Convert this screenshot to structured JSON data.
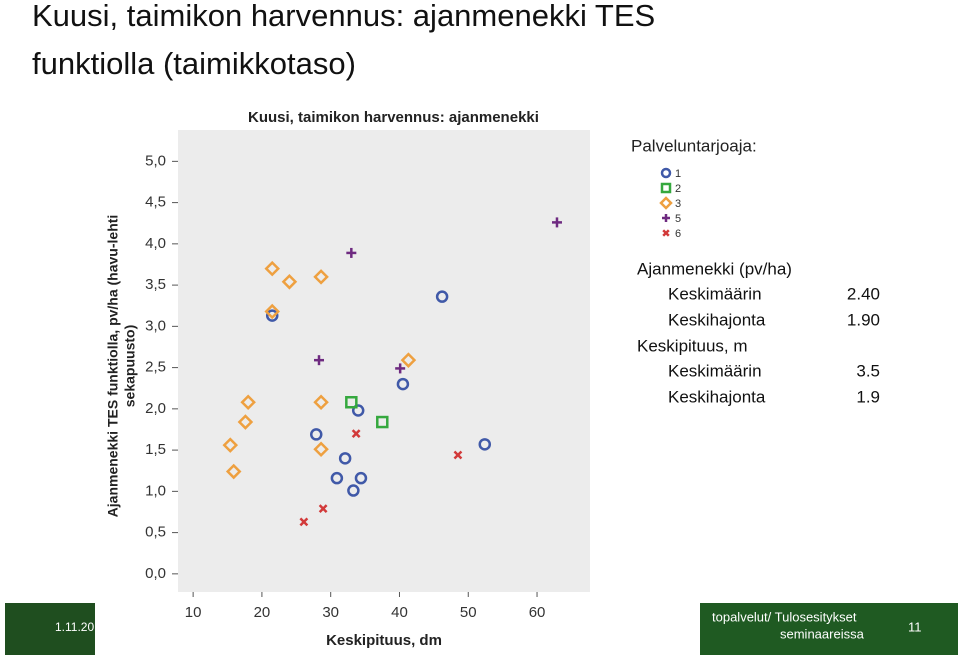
{
  "slide": {
    "title_lines": [
      "Kuusi, taimikon harvennus: ajanmenekki TES",
      "funktiolla (taimikkotaso)"
    ],
    "footer_date": "1.11.20",
    "footer_text_lines": [
      "topalvelut/ Tulosesitykset",
      "seminaareissa"
    ],
    "page_number": "11"
  },
  "stats": {
    "rows": [
      [
        "Ajanmenekki (pv/ha)",
        ""
      ],
      [
        "Keskimäärin",
        "2.40"
      ],
      [
        "Keskihajonta",
        "1.90"
      ],
      [
        "Keskipituus, m",
        ""
      ],
      [
        "Keskimäärin",
        "3.5"
      ],
      [
        "Keskihajonta",
        "1.9"
      ]
    ]
  },
  "chart_data": {
    "type": "scatter",
    "title": "Kuusi, taimikon harvennus: ajanmenekki",
    "xlabel": "Keskipituus, dm",
    "ylabel": [
      "Ajanmenekki TES funktiolla, pv/ha (havu-lehti",
      "sekapuusto)"
    ],
    "legend_title": "Palveluntarjoaja:",
    "legend": "upper right",
    "grid": false,
    "xlim": [
      7.8,
      67.7
    ],
    "xticks": [
      10,
      20,
      30,
      40,
      50,
      60
    ],
    "ylim": [
      -0.22,
      5.38
    ],
    "yticks": [
      {
        "value": 0,
        "label": "0,0"
      },
      {
        "value": 0.5,
        "label": "0,5"
      },
      {
        "value": 1,
        "label": "1,0"
      },
      {
        "value": 1.5,
        "label": "1,5"
      },
      {
        "value": 2,
        "label": "2,0"
      },
      {
        "value": 2.5,
        "label": "2,5"
      },
      {
        "value": 3,
        "label": "3,0"
      },
      {
        "value": 3.5,
        "label": "3,5"
      },
      {
        "value": 4,
        "label": "4,0"
      },
      {
        "value": 4.5,
        "label": "4,5"
      },
      {
        "value": 5,
        "label": "5,0"
      }
    ],
    "series": [
      {
        "name": "1",
        "color": "#4059a8",
        "marker": "circle",
        "x": [
          21.5,
          46.2,
          40.5,
          34.0,
          27.9,
          32.1,
          30.9,
          34.4,
          33.3,
          52.4
        ],
        "values": [
          3.13,
          3.36,
          2.3,
          1.98,
          1.69,
          1.4,
          1.16,
          1.16,
          1.01,
          1.57
        ]
      },
      {
        "name": "2",
        "color": "#35a83e",
        "marker": "square",
        "x": [
          33.0,
          37.5
        ],
        "values": [
          2.08,
          1.84
        ]
      },
      {
        "name": "3",
        "color": "#eea040",
        "marker": "diamond",
        "x": [
          21.5,
          24.0,
          28.6,
          21.5,
          18.0,
          17.6,
          28.6,
          28.6,
          15.4,
          15.9,
          41.3
        ],
        "values": [
          3.7,
          3.54,
          3.6,
          3.18,
          2.08,
          1.84,
          2.08,
          1.51,
          1.56,
          1.24,
          2.59
        ]
      },
      {
        "name": "5",
        "color": "#6e2a80",
        "marker": "plus",
        "x": [
          33.0,
          28.3,
          40.1,
          62.9
        ],
        "values": [
          3.89,
          2.59,
          2.49,
          4.26
        ]
      },
      {
        "name": "6",
        "color": "#d23a3a",
        "marker": "cross",
        "x": [
          33.7,
          28.9,
          26.1,
          48.5
        ],
        "values": [
          1.7,
          0.79,
          0.63,
          1.44
        ]
      }
    ]
  }
}
